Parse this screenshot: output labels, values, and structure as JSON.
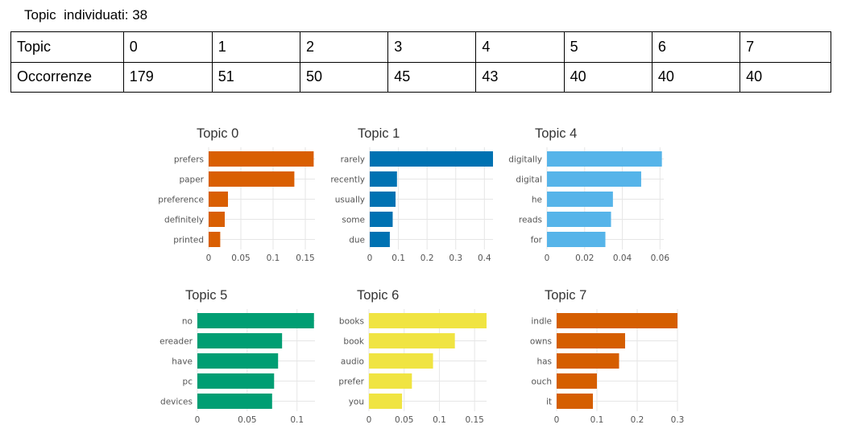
{
  "summary": {
    "label": "Topic  individuati:",
    "count": "38"
  },
  "table": {
    "rows": [
      {
        "header": "Topic",
        "cells": [
          "0",
          "1",
          "2",
          "3",
          "4",
          "5",
          "6",
          "7"
        ]
      },
      {
        "header": "Occorrenze",
        "cells": [
          "179",
          "51",
          "50",
          "45",
          "43",
          "40",
          "40",
          "40"
        ]
      }
    ]
  },
  "chart_data": [
    {
      "type": "bar",
      "orientation": "horizontal",
      "title": "Topic 0",
      "color": "#d95f02",
      "categories": [
        "prefers",
        "paper",
        "preference",
        "definitely",
        "printed"
      ],
      "values": [
        0.163,
        0.133,
        0.03,
        0.025,
        0.018
      ],
      "xlim": [
        0,
        0.165
      ],
      "xticks": [
        0,
        0.05,
        0.1,
        0.15
      ],
      "xtick_labels": [
        "0",
        "0.05",
        "0.1",
        "0.15"
      ],
      "grid": true
    },
    {
      "type": "bar",
      "orientation": "horizontal",
      "title": "Topic 1",
      "color": "#0072b2",
      "categories": [
        "rarely",
        "recently",
        "usually",
        "some",
        "due"
      ],
      "values": [
        0.43,
        0.095,
        0.09,
        0.08,
        0.07
      ],
      "xlim": [
        0,
        0.43
      ],
      "xticks": [
        0,
        0.1,
        0.2,
        0.3,
        0.4
      ],
      "xtick_labels": [
        "0",
        "0.1",
        "0.2",
        "0.3",
        "0.4"
      ],
      "grid": true
    },
    {
      "type": "bar",
      "orientation": "horizontal",
      "title": "Topic 4",
      "color": "#56b4e9",
      "categories": [
        "digitally",
        "digital",
        "he",
        "reads",
        "for"
      ],
      "values": [
        0.061,
        0.05,
        0.035,
        0.034,
        0.031
      ],
      "xlim": [
        0,
        0.062
      ],
      "xticks": [
        0,
        0.02,
        0.04,
        0.06
      ],
      "xtick_labels": [
        "0",
        "0.02",
        "0.04",
        "0.06"
      ],
      "grid": true
    },
    {
      "type": "bar",
      "orientation": "horizontal",
      "title": "Topic 5",
      "color": "#009e73",
      "categories": [
        "no",
        "ereader",
        "have",
        "pc",
        "devices"
      ],
      "values": [
        0.117,
        0.085,
        0.081,
        0.077,
        0.075
      ],
      "xlim": [
        0,
        0.118
      ],
      "xticks": [
        0,
        0.05,
        0.1
      ],
      "xtick_labels": [
        "0",
        "0.05",
        "0.1"
      ],
      "grid": true
    },
    {
      "type": "bar",
      "orientation": "horizontal",
      "title": "Topic 6",
      "color": "#f0e442",
      "categories": [
        "books",
        "book",
        "audio",
        "prefer",
        "you"
      ],
      "values": [
        0.167,
        0.122,
        0.091,
        0.061,
        0.047
      ],
      "xlim": [
        0,
        0.167
      ],
      "xticks": [
        0,
        0.05,
        0.1,
        0.15
      ],
      "xtick_labels": [
        "0",
        "0.05",
        "0.1",
        "0.15"
      ],
      "grid": true
    },
    {
      "type": "bar",
      "orientation": "horizontal",
      "title": "Topic 7",
      "color": "#d55e00",
      "categories": [
        "indle",
        "owns",
        "has",
        "ouch",
        "it"
      ],
      "values": [
        0.3,
        0.17,
        0.155,
        0.1,
        0.09
      ],
      "xlim": [
        0,
        0.3
      ],
      "xticks": [
        0,
        0.1,
        0.2,
        0.3
      ],
      "xtick_labels": [
        "0",
        "0.1",
        "0.2",
        "0.3"
      ],
      "grid": true
    }
  ]
}
